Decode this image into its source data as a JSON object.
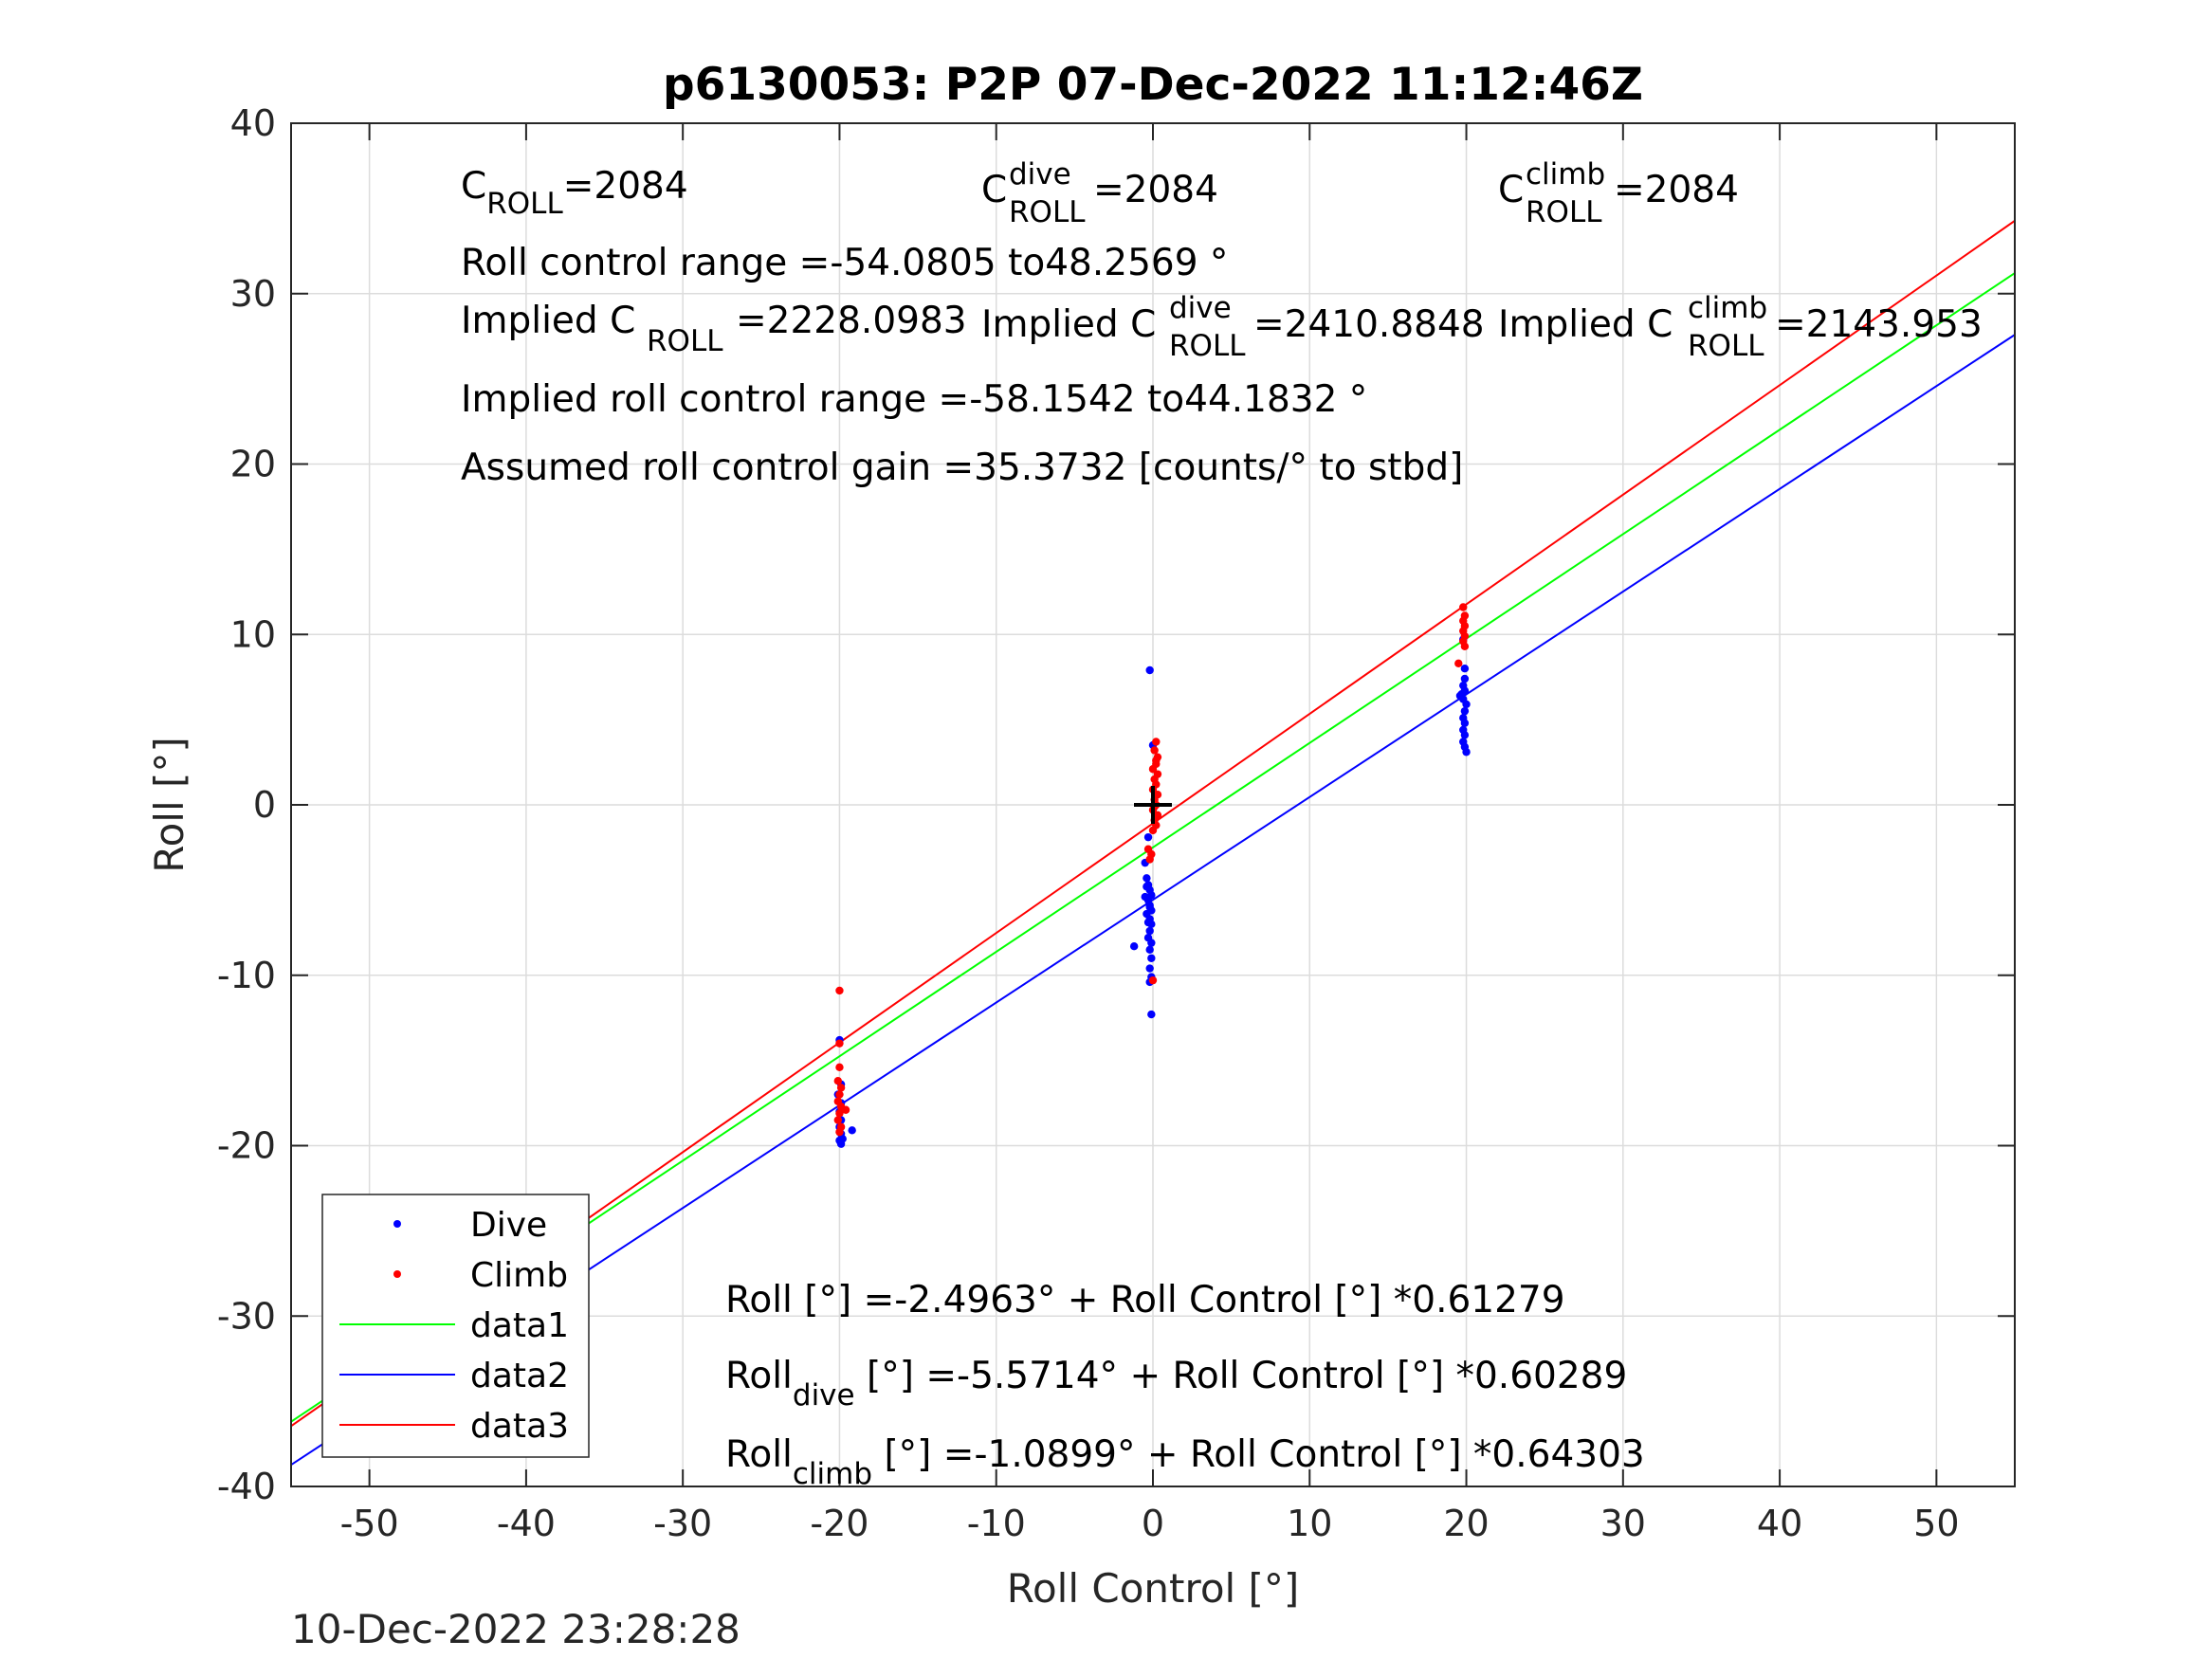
{
  "chart_data": {
    "type": "scatter",
    "title": "p6130053: P2P 07-Dec-2022 11:12:46Z",
    "xlabel": "Roll Control [°]",
    "ylabel": "Roll [°]",
    "xlim": [
      -55,
      55
    ],
    "ylim": [
      -40,
      40
    ],
    "xticks": [
      -50,
      -40,
      -30,
      -20,
      -10,
      0,
      10,
      20,
      30,
      40,
      50
    ],
    "yticks": [
      -40,
      -30,
      -20,
      -10,
      0,
      10,
      20,
      30,
      40
    ],
    "grid": true,
    "legend": "bottom-left",
    "timestamp": "10-Dec-2022 23:28:28",
    "annotations": {
      "croll": {
        "base": "C",
        "sub": "ROLL",
        "value": "=2084"
      },
      "croll_dive": {
        "base": "C",
        "sup": "dive",
        "sub": "ROLL",
        "value": " =2084"
      },
      "croll_climb": {
        "base": "C",
        "sup": "climb",
        "sub": "ROLL",
        "value": " =2084"
      },
      "range": "Roll control range =-54.0805 to48.2569 °",
      "implied_croll": {
        "prefix": "Implied C",
        "sub": "ROLL",
        "value": " =2228.0983"
      },
      "implied_dive": {
        "prefix": "Implied C",
        "sup": "dive",
        "sub": "ROLL",
        "value": " =2410.8848"
      },
      "implied_climb": {
        "prefix": "Implied C",
        "sup": "climb",
        "sub": "ROLL",
        "value": " =2143.953"
      },
      "implied_range": "Implied roll control range =-58.1542 to44.1832 °",
      "gain": "Assumed roll control gain =35.3732 [counts/° to stbd]",
      "fit_all": "Roll [°] =-2.4963° + Roll Control [°] *0.61279",
      "fit_dive": {
        "base": "Roll",
        "sub": "dive",
        "rest": " [°] =-5.5714° + Roll Control [°] *0.60289"
      },
      "fit_climb": {
        "base": "Roll",
        "sub": "climb",
        "rest": " [°] =-1.0899° + Roll Control [°] *0.64303"
      }
    },
    "series": [
      {
        "name": "Dive",
        "kind": "points",
        "color": "#0000ff",
        "points": [
          [
            -20,
            -13.8
          ],
          [
            -19.9,
            -16.4
          ],
          [
            -20.1,
            -17.0
          ],
          [
            -19.9,
            -17.5
          ],
          [
            -20.0,
            -18.0
          ],
          [
            -19.9,
            -18.5
          ],
          [
            -20.0,
            -18.9
          ],
          [
            -19.9,
            -19.3
          ],
          [
            -19.8,
            -19.6
          ],
          [
            -19.9,
            -19.9
          ],
          [
            -20.0,
            -19.7
          ],
          [
            -19.2,
            -19.1
          ],
          [
            -0.2,
            7.9
          ],
          [
            0.0,
            3.5
          ],
          [
            -0.3,
            -1.9
          ],
          [
            -0.5,
            -3.4
          ],
          [
            -0.4,
            -4.3
          ],
          [
            -0.3,
            -4.7
          ],
          [
            -0.2,
            -5.0
          ],
          [
            -0.1,
            -5.3
          ],
          [
            -0.3,
            -5.6
          ],
          [
            -0.2,
            -5.9
          ],
          [
            -0.1,
            -6.2
          ],
          [
            -0.4,
            -6.4
          ],
          [
            -0.2,
            -6.7
          ],
          [
            -0.1,
            -7.0
          ],
          [
            -0.2,
            -7.4
          ],
          [
            -0.3,
            -7.8
          ],
          [
            -0.1,
            -8.1
          ],
          [
            -0.2,
            -8.5
          ],
          [
            -1.2,
            -8.3
          ],
          [
            -0.1,
            -9.0
          ],
          [
            -0.2,
            -9.6
          ],
          [
            -0.1,
            -10.1
          ],
          [
            -0.2,
            -10.4
          ],
          [
            -0.1,
            -12.3
          ],
          [
            -0.4,
            -4.8
          ],
          [
            -0.5,
            -5.4
          ],
          [
            -0.2,
            -6.0
          ],
          [
            -0.3,
            -6.9
          ],
          [
            19.8,
            9.7
          ],
          [
            19.9,
            8.0
          ],
          [
            19.9,
            7.4
          ],
          [
            19.8,
            7.0
          ],
          [
            19.9,
            6.7
          ],
          [
            19.7,
            6.5
          ],
          [
            19.8,
            6.2
          ],
          [
            20.0,
            5.9
          ],
          [
            19.9,
            5.5
          ],
          [
            19.8,
            5.1
          ],
          [
            19.9,
            4.8
          ],
          [
            19.8,
            4.4
          ],
          [
            19.9,
            4.1
          ],
          [
            19.8,
            3.7
          ],
          [
            19.9,
            3.4
          ],
          [
            20.0,
            3.1
          ],
          [
            19.6,
            6.4
          ]
        ]
      },
      {
        "name": "Climb",
        "kind": "points",
        "color": "#ff0000",
        "points": [
          [
            -20.0,
            -10.9
          ],
          [
            -20.0,
            -14.0
          ],
          [
            -20.0,
            -15.4
          ],
          [
            -20.1,
            -16.2
          ],
          [
            -19.9,
            -16.6
          ],
          [
            -20.0,
            -17.0
          ],
          [
            -20.1,
            -17.4
          ],
          [
            -19.9,
            -17.7
          ],
          [
            -20.0,
            -18.1
          ],
          [
            -20.1,
            -18.5
          ],
          [
            -19.9,
            -18.9
          ],
          [
            -20.0,
            -19.2
          ],
          [
            -19.6,
            -17.9
          ],
          [
            0.2,
            3.7
          ],
          [
            0.1,
            3.2
          ],
          [
            0.3,
            2.8
          ],
          [
            0.2,
            2.4
          ],
          [
            0.0,
            2.1
          ],
          [
            0.3,
            1.8
          ],
          [
            0.1,
            1.5
          ],
          [
            0.2,
            1.2
          ],
          [
            0.0,
            0.9
          ],
          [
            0.3,
            0.6
          ],
          [
            0.1,
            0.3
          ],
          [
            0.2,
            0.0
          ],
          [
            0.0,
            -0.3
          ],
          [
            0.3,
            -0.6
          ],
          [
            0.1,
            -0.9
          ],
          [
            0.2,
            -1.2
          ],
          [
            0.0,
            -1.5
          ],
          [
            -0.3,
            -2.6
          ],
          [
            -0.1,
            -2.9
          ],
          [
            -0.2,
            -3.2
          ],
          [
            0.0,
            -10.3
          ],
          [
            0.2,
            2.6
          ],
          [
            0.1,
            -0.1
          ],
          [
            19.8,
            11.6
          ],
          [
            19.9,
            11.1
          ],
          [
            19.8,
            10.8
          ],
          [
            19.9,
            10.5
          ],
          [
            19.8,
            10.2
          ],
          [
            19.9,
            9.9
          ],
          [
            19.8,
            9.6
          ],
          [
            19.9,
            9.3
          ],
          [
            19.5,
            8.3
          ]
        ]
      },
      {
        "name": "data1",
        "kind": "line",
        "color": "#00ff00",
        "intercept": -2.4963,
        "slope": 0.61279
      },
      {
        "name": "data2",
        "kind": "line",
        "color": "#0000ff",
        "intercept": -5.5714,
        "slope": 0.60289
      },
      {
        "name": "data3",
        "kind": "line",
        "color": "#ff0000",
        "intercept": -1.0899,
        "slope": 0.64303
      }
    ],
    "marker": {
      "x": 0,
      "y": 0,
      "symbol": "+",
      "color": "#000000"
    }
  }
}
